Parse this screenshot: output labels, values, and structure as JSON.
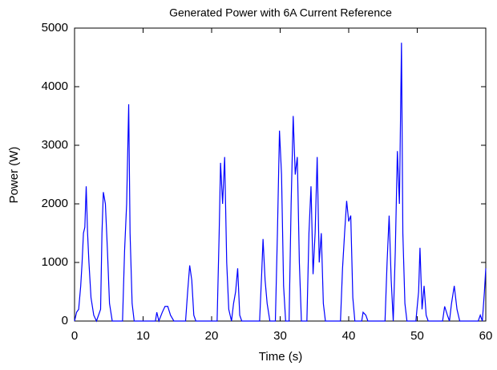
{
  "chart_data": {
    "type": "line",
    "title": "Generated Power with 6A Current Reference",
    "xlabel": "Time (s)",
    "ylabel": "Power (W)",
    "x": [
      0,
      0.3,
      0.6,
      0.9,
      1.1,
      1.3,
      1.5,
      1.7,
      1.9,
      2.1,
      2.4,
      2.8,
      3.2,
      3.8,
      4.0,
      4.2,
      4.5,
      4.8,
      5.1,
      5.5,
      7.0,
      7.3,
      7.6,
      7.9,
      8.1,
      8.4,
      8.7,
      11.8,
      12.0,
      12.3,
      12.8,
      13.2,
      13.6,
      14.0,
      14.5,
      16.2,
      16.5,
      16.8,
      17.1,
      17.4,
      17.7,
      20.8,
      21.1,
      21.3,
      21.6,
      21.9,
      22.2,
      22.5,
      22.9,
      23.2,
      23.5,
      23.8,
      24.1,
      24.4,
      27.0,
      27.3,
      27.5,
      27.8,
      28.1,
      28.5,
      29.3,
      29.6,
      29.9,
      30.2,
      30.5,
      30.8,
      31.3,
      31.6,
      31.9,
      32.2,
      32.5,
      32.8,
      33.1,
      33.9,
      34.2,
      34.5,
      34.8,
      35.1,
      35.4,
      35.7,
      36.0,
      36.3,
      36.6,
      38.8,
      39.1,
      39.4,
      39.7,
      40.0,
      40.3,
      40.6,
      40.9,
      41.9,
      42.1,
      42.5,
      42.8,
      45.3,
      45.6,
      45.9,
      46.2,
      46.5,
      46.8,
      47.1,
      47.4,
      47.7,
      47.9,
      48.2,
      48.5,
      49.8,
      50.2,
      50.4,
      50.7,
      51.0,
      51.3,
      51.6,
      53.7,
      54.0,
      54.4,
      54.7,
      55.0,
      55.4,
      55.8,
      56.2,
      58.9,
      59.2,
      59.5,
      59.8,
      60
    ],
    "series": [
      {
        "color": "#0000ff",
        "values": [
          0,
          150,
          200,
          600,
          1000,
          1500,
          1600,
          2300,
          1500,
          1000,
          400,
          100,
          0,
          200,
          1500,
          2200,
          2000,
          1200,
          300,
          0,
          0,
          1200,
          2000,
          3700,
          1500,
          300,
          0,
          0,
          150,
          0,
          150,
          250,
          250,
          100,
          0,
          0,
          500,
          950,
          700,
          100,
          0,
          0,
          1500,
          2700,
          2000,
          2800,
          1000,
          200,
          0,
          300,
          500,
          900,
          100,
          0,
          0,
          800,
          1400,
          700,
          300,
          0,
          0,
          1500,
          3250,
          2500,
          600,
          0,
          0,
          2000,
          3500,
          2500,
          2800,
          1000,
          0,
          0,
          1500,
          2300,
          800,
          1500,
          2800,
          1000,
          1500,
          300,
          0,
          0,
          900,
          1500,
          2050,
          1700,
          1800,
          400,
          0,
          0,
          150,
          100,
          0,
          0,
          1000,
          1800,
          700,
          0,
          1200,
          2900,
          2000,
          4750,
          1500,
          300,
          0,
          0,
          500,
          1250,
          200,
          600,
          100,
          0,
          0,
          250,
          100,
          0,
          300,
          600,
          200,
          0,
          0,
          100,
          0,
          500,
          900
        ]
      }
    ],
    "xlim": [
      0,
      60
    ],
    "xticks": [
      0,
      10,
      20,
      30,
      40,
      50,
      60
    ],
    "ylim": [
      0,
      5000
    ],
    "yticks": [
      0,
      1000,
      2000,
      3000,
      4000,
      5000
    ]
  }
}
